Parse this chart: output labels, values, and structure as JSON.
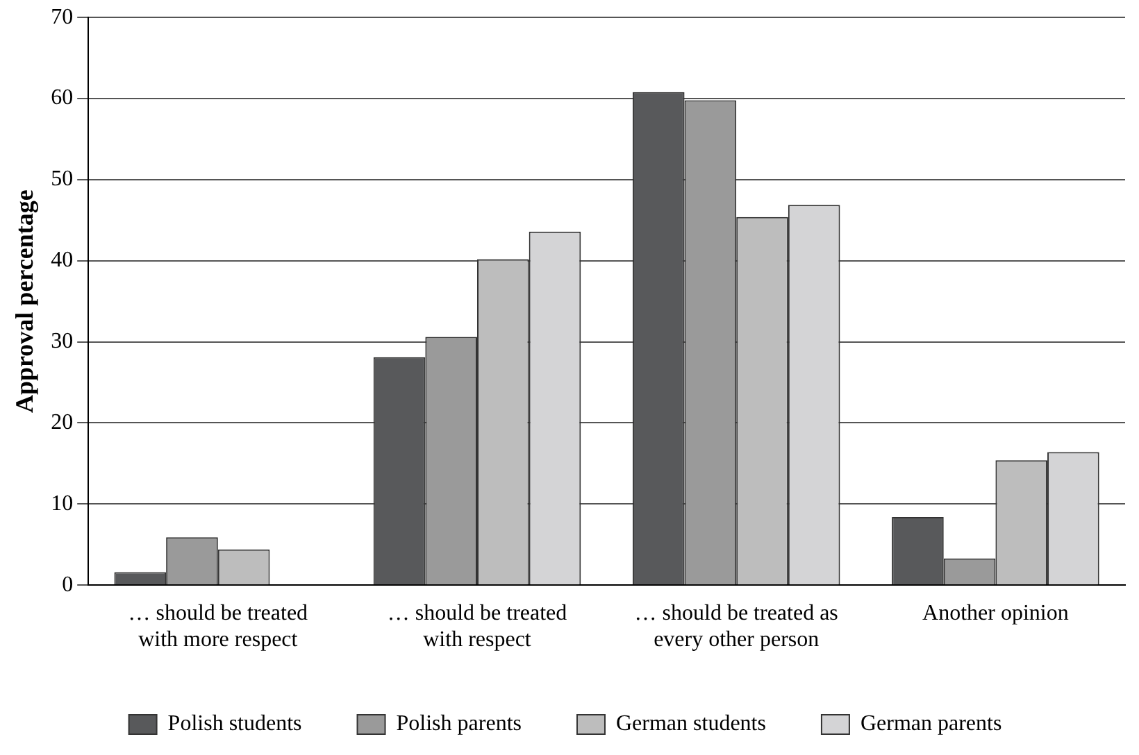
{
  "chart_data": {
    "type": "bar",
    "ylabel": "Approval percentage",
    "categories": [
      "… should be treated with more respect",
      "… should be treated with respect",
      "… should be treated as every other person",
      "Another opinion"
    ],
    "series": [
      {
        "name": "Polish students",
        "color": "#58595b",
        "values": [
          1.6,
          28.1,
          60.8,
          8.4
        ]
      },
      {
        "name": "Polish parents",
        "color": "#9a9a9a",
        "values": [
          5.9,
          30.6,
          59.8,
          3.3
        ]
      },
      {
        "name": "German students",
        "color": "#bdbdbd",
        "values": [
          4.4,
          40.2,
          45.4,
          15.4
        ]
      },
      {
        "name": "German parents",
        "color": "#d4d4d6",
        "values": [
          0,
          43.6,
          46.9,
          16.4
        ]
      }
    ],
    "ylim": [
      0,
      70
    ],
    "yticks": [
      0,
      10,
      20,
      30,
      40,
      50,
      60,
      70
    ],
    "grid": "y",
    "legend": "bottom"
  }
}
